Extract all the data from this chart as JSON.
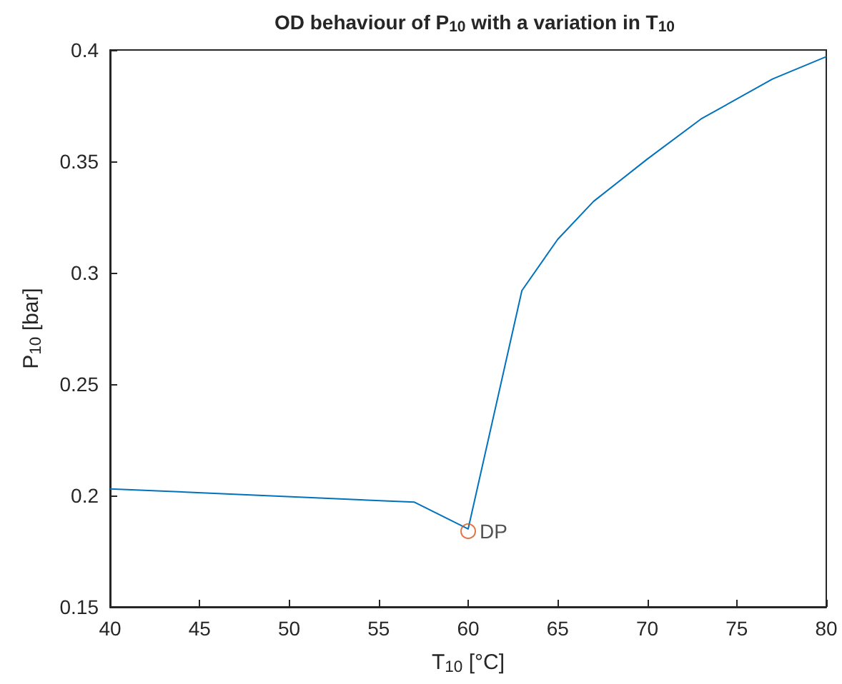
{
  "chart_data": {
    "type": "line",
    "title": "OD behaviour of P$_{10}$ with a variation in T$_{10}$",
    "xlabel": "T$_{10}$ [°C]",
    "ylabel": "P$_{10}$ [bar]",
    "xlim": [
      40,
      80
    ],
    "xticks": [
      40,
      45,
      50,
      55,
      60,
      65,
      70,
      75,
      80
    ],
    "ylim": [
      0.15,
      0.4
    ],
    "yticks": [
      0.15,
      0.2,
      0.25,
      0.3,
      0.35,
      0.4
    ],
    "grid": false,
    "series": [
      {
        "color": "#0072bd",
        "marker": "none",
        "x": [
          40,
          57,
          60,
          63,
          65,
          67,
          70,
          73,
          77,
          80
        ],
        "values": [
          0.203,
          0.197,
          0.185,
          0.292,
          0.315,
          0.332,
          0.351,
          0.369,
          0.387,
          0.397
        ]
      },
      {
        "type": "scatter",
        "color": "#d95319",
        "marker": "circle",
        "x": [
          60
        ],
        "values": [
          0.184
        ]
      }
    ],
    "annotations": [
      {
        "text": "DP",
        "x": 60,
        "y": 0.184
      }
    ]
  }
}
